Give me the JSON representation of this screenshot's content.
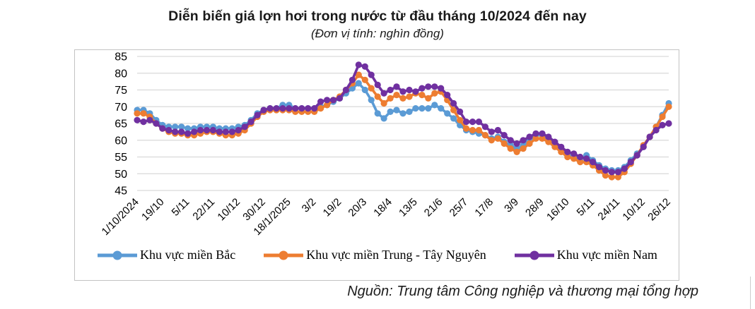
{
  "header": {
    "title": "Diễn biến giá lợn hơi trong nước từ đầu tháng 10/2024 đến nay",
    "subtitle": "(Đơn vị tính: nghìn đồng)"
  },
  "source": "Nguồn: Trung tâm Công nghiệp và thương mại tổng hợp",
  "chart_data": {
    "type": "line",
    "title": "Diễn biến giá lợn hơi trong nước từ đầu tháng 10/2024 đến nay",
    "unit_label": "(Đơn vị tính: nghìn đồng)",
    "ylim": [
      45,
      85
    ],
    "y_ticks": [
      85,
      80,
      75,
      70,
      65,
      60,
      55,
      50,
      45
    ],
    "grid": "horizontal-light-gray",
    "legend_position": "bottom",
    "marker": "circle",
    "x_tick_labels": [
      "1/10/2024",
      "19/10",
      "5/11",
      "22/11",
      "10/12",
      "30/12",
      "18/1/2025",
      "3/2",
      "19/2",
      "20/3",
      "18/4",
      "13/5",
      "21/6",
      "25/7",
      "17/8",
      "3/9",
      "28/9",
      "16/10",
      "5/11",
      "24/11",
      "10/12",
      "26/12"
    ],
    "points_per_tick_interval": 4,
    "series": [
      {
        "name": "Khu vực miền Bắc",
        "color": "#5B9BD5",
        "values": [
          69,
          69,
          68,
          66,
          64.5,
          64,
          64,
          64,
          63.5,
          63.5,
          64,
          64,
          64,
          63.5,
          63.5,
          63.5,
          64,
          64.5,
          66,
          68,
          69,
          69.5,
          69.5,
          70.5,
          70.5,
          69.5,
          69.5,
          69.5,
          69.5,
          70,
          70.5,
          71.5,
          72.5,
          74,
          75.5,
          77,
          75,
          72,
          68,
          66.5,
          68.5,
          69,
          68,
          68.5,
          69.5,
          69.5,
          69.5,
          70.5,
          69.5,
          68,
          66.5,
          64.5,
          63,
          62.5,
          62,
          61.5,
          60.5,
          61,
          59.5,
          58.5,
          57.5,
          58.5,
          60,
          61.5,
          61.5,
          60,
          58.5,
          57,
          55.5,
          55,
          54,
          55.5,
          54,
          52.5,
          51.5,
          51,
          51,
          52,
          54,
          56,
          58,
          61,
          64,
          67.5,
          71
        ]
      },
      {
        "name": "Khu vực miền Trung - Tây Nguyên",
        "color": "#ED7D31",
        "values": [
          68,
          68,
          67,
          65,
          63.5,
          62.5,
          62,
          62,
          61.5,
          61.5,
          62,
          62.5,
          62.5,
          62,
          61.5,
          61.5,
          62,
          63,
          65,
          67,
          68.5,
          69,
          69,
          69,
          69,
          68.5,
          68.5,
          68.5,
          68.5,
          69.5,
          70.5,
          72,
          73,
          75,
          77,
          79.5,
          78,
          75.5,
          73,
          71,
          72.5,
          73.5,
          72.5,
          73,
          74,
          73.5,
          72.5,
          74,
          74.5,
          72,
          69,
          66,
          63.5,
          63,
          63,
          61.5,
          60,
          60.5,
          59,
          57.5,
          56.5,
          57.5,
          59,
          60.5,
          60.5,
          59.5,
          58,
          56.5,
          55,
          54.5,
          53.5,
          53.5,
          52.5,
          51,
          49.5,
          49,
          49,
          50.5,
          53,
          55.5,
          58.5,
          61,
          64,
          67,
          70
        ]
      },
      {
        "name": "Khu vực miền Nam",
        "color": "#7030A0",
        "values": [
          66,
          65.5,
          66,
          65,
          63.5,
          63,
          62.5,
          62.5,
          62,
          62.5,
          63,
          63,
          63,
          62.5,
          62.5,
          62.5,
          63,
          64,
          65.5,
          67.5,
          69,
          69.5,
          69.5,
          69.5,
          69.5,
          69.5,
          69.5,
          69.5,
          69.5,
          71.5,
          72,
          72,
          72.5,
          75,
          78,
          82.5,
          82,
          79.5,
          76.5,
          74,
          75,
          76,
          74.5,
          75,
          74.5,
          75.5,
          76,
          76,
          75.5,
          73.5,
          71,
          68.5,
          65.5,
          65.5,
          65.5,
          64,
          62.5,
          63,
          61.5,
          60,
          59,
          60,
          61,
          62,
          62,
          61,
          59.5,
          58,
          56.5,
          56,
          55,
          54.5,
          53.5,
          52,
          51,
          50.5,
          50.5,
          51.5,
          53.5,
          55.5,
          58,
          61,
          63,
          64.5,
          65
        ]
      }
    ]
  }
}
